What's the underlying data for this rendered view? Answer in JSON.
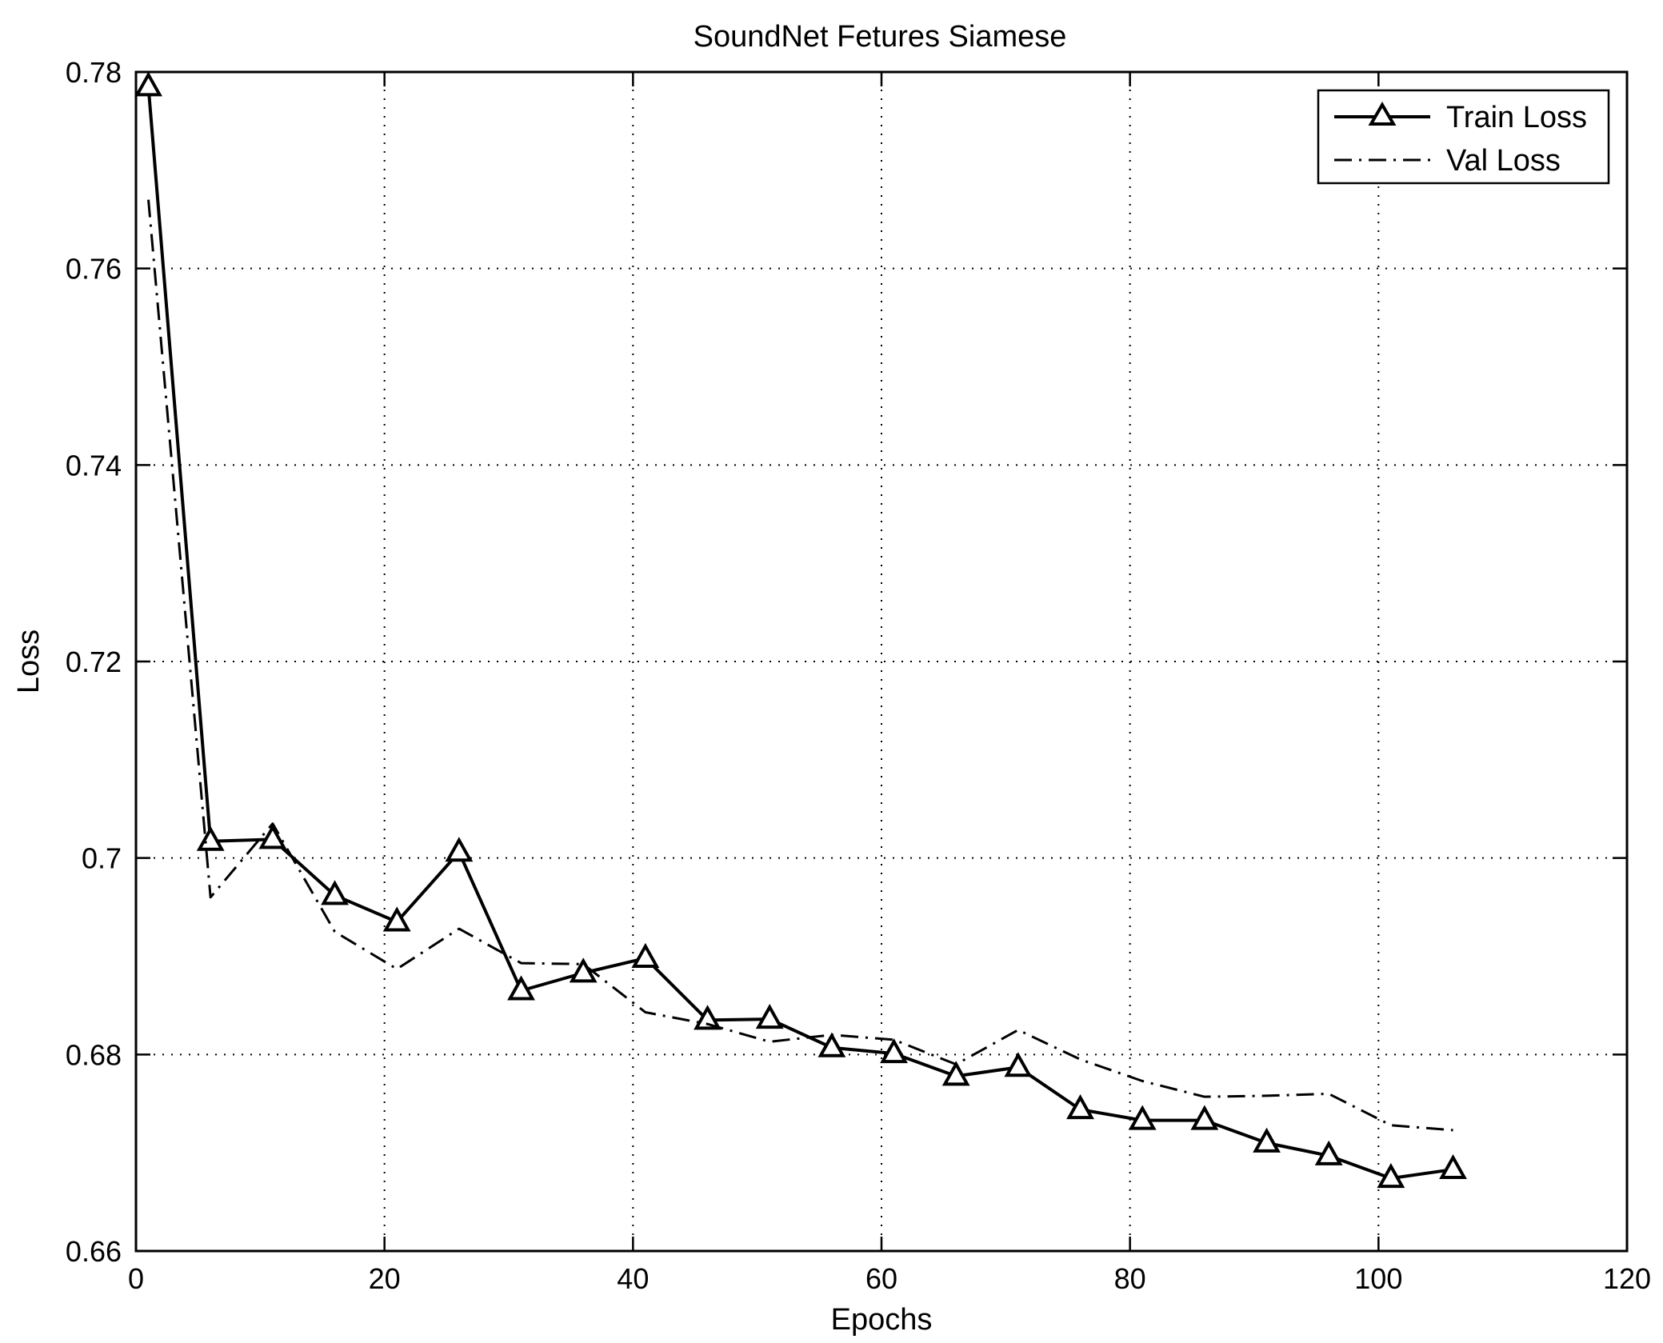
{
  "chart_data": {
    "type": "line",
    "title": "SoundNet Fetures Siamese",
    "xlabel": "Epochs",
    "ylabel": "Loss",
    "xlim": [
      0,
      120
    ],
    "ylim": [
      0.66,
      0.78
    ],
    "xticks": [
      0,
      20,
      40,
      60,
      80,
      100,
      120
    ],
    "xtick_labels": [
      "0",
      "20",
      "40",
      "60",
      "80",
      "100",
      "120"
    ],
    "yticks": [
      0.66,
      0.68,
      0.7,
      0.72,
      0.74,
      0.76,
      0.78
    ],
    "ytick_labels": [
      "0.66",
      "0.68",
      "0.7",
      "0.72",
      "0.74",
      "0.76",
      "0.78"
    ],
    "grid": true,
    "legend_position": "top-right",
    "series": [
      {
        "name": "Train Loss",
        "style": "solid-triangle",
        "color": "#000000",
        "x": [
          1,
          6,
          11,
          16,
          21,
          26,
          31,
          36,
          41,
          46,
          51,
          56,
          61,
          66,
          71,
          76,
          81,
          86,
          91,
          96,
          101,
          106
        ],
        "y": [
          0.7785,
          0.7017,
          0.7019,
          0.6962,
          0.6935,
          0.7006,
          0.6865,
          0.6883,
          0.6898,
          0.6835,
          0.6836,
          0.6807,
          0.6801,
          0.6778,
          0.6787,
          0.6744,
          0.6733,
          0.6733,
          0.671,
          0.6697,
          0.6674,
          0.6683
        ]
      },
      {
        "name": "Val Loss",
        "style": "dash-dot",
        "color": "#000000",
        "x": [
          1,
          6,
          11,
          16,
          21,
          26,
          31,
          36,
          41,
          46,
          51,
          56,
          61,
          66,
          71,
          76,
          81,
          86,
          91,
          96,
          101,
          106
        ],
        "y": [
          0.767,
          0.696,
          0.7035,
          0.6925,
          0.6887,
          0.6928,
          0.6893,
          0.6892,
          0.6843,
          0.6831,
          0.6813,
          0.682,
          0.6815,
          0.679,
          0.6825,
          0.6795,
          0.6773,
          0.6757,
          0.6758,
          0.676,
          0.6728,
          0.6723
        ]
      }
    ]
  }
}
